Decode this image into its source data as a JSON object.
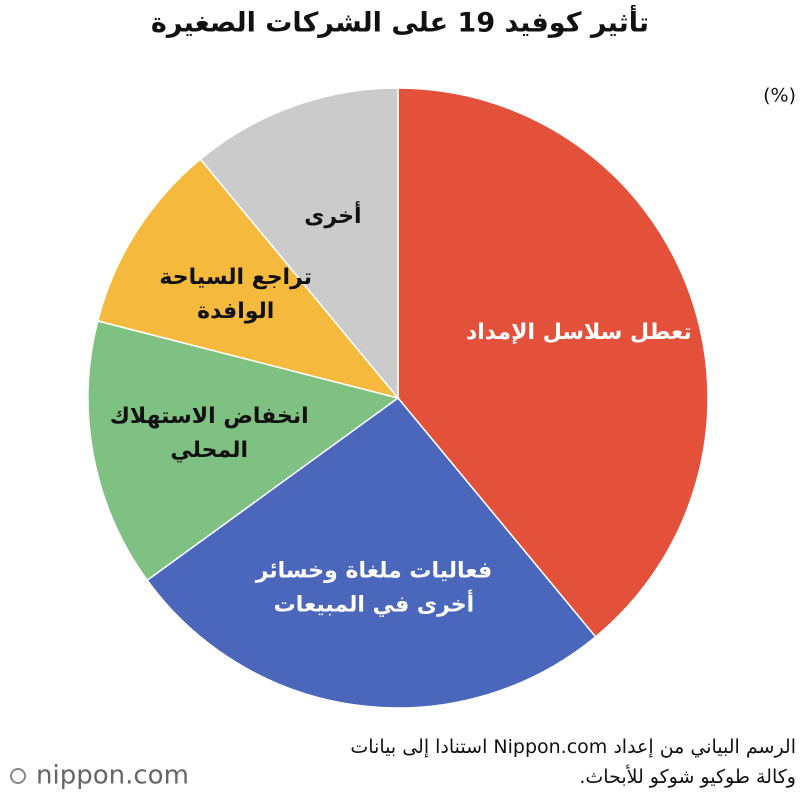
{
  "chart_data": {
    "type": "pie",
    "title": "تأثير كوفيد 19 على الشركات الصغيرة",
    "unit": "(%)",
    "categories": [
      "تعطل سلاسل الإمداد",
      "فعاليات ملغاة وخسائر\nأخرى في المبيعات",
      "انخفاض الاستهلاك\nالمحلي",
      "تراجع السياحة\nالوافدة",
      "أخرى"
    ],
    "values": [
      39,
      26,
      14,
      10,
      11
    ],
    "colors": [
      "#e4513a",
      "#4a67bb",
      "#7fc183",
      "#f5b93d",
      "#cbcbcb"
    ],
    "label_colors": [
      "#ffffff",
      "#ffffff",
      "#111111",
      "#111111",
      "#111111"
    ],
    "source": "الرسم البياني من إعداد Nippon.com استنادا إلى بيانات\nوكالة طوكيو شوكو للأبحاث.",
    "logo": "nippon.com"
  }
}
